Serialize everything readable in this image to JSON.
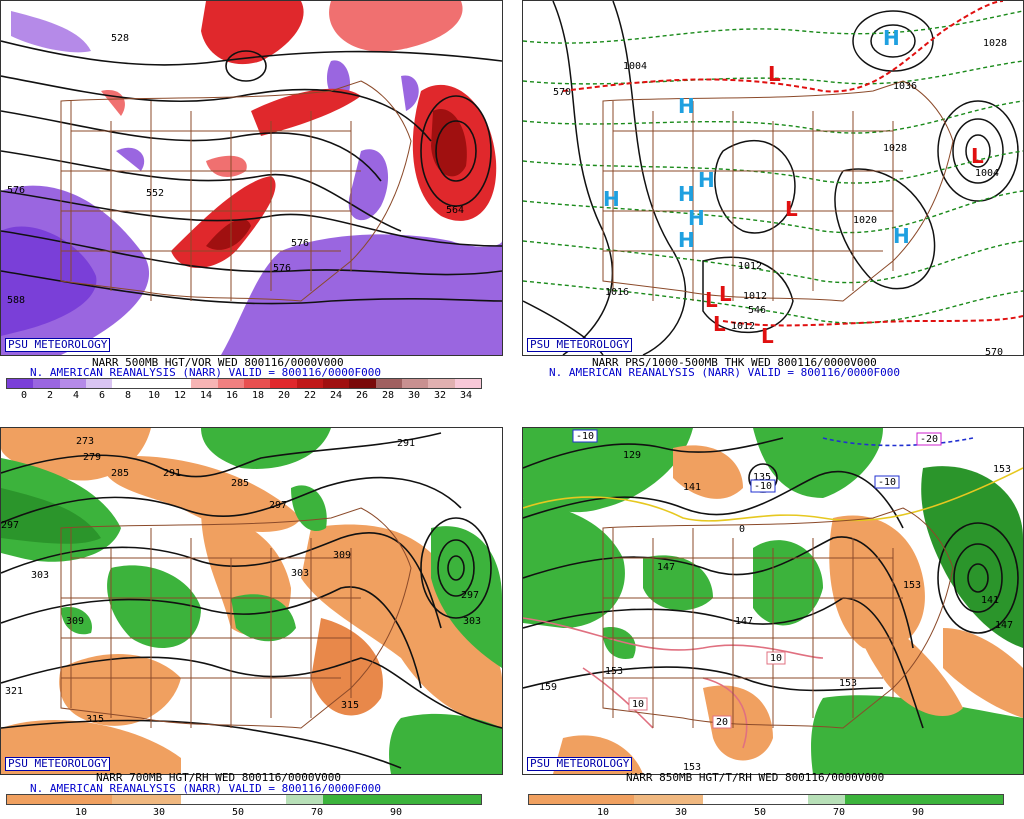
{
  "panels": [
    {
      "id": "p500",
      "badge": "PSU METEOROLOGY",
      "line1": "NARR 500MB HGT/VOR WED 800116/0000V000",
      "line2": "N. AMERICAN REANALYSIS (NARR) VALID = 800116/0000F000",
      "colorbar_ticks": [
        "0",
        "2",
        "4",
        "6",
        "8",
        "10",
        "12",
        "14",
        "16",
        "18",
        "20",
        "22",
        "24",
        "26",
        "28",
        "30",
        "32",
        "34"
      ],
      "contour_labels": [
        "528",
        "552",
        "576",
        "576",
        "588",
        "576",
        "564"
      ],
      "colors": {
        "positive": "#e0282c",
        "negative": "#8a4fd6"
      }
    },
    {
      "id": "pmslp",
      "badge": "PSU METEOROLOGY",
      "line1": "NARR PRS/1000-500MB THK WED 800116/0000V000",
      "line2": "N. AMERICAN REANALYSIS (NARR) VALID = 800116/0000F000",
      "contour_labels": [
        "1004",
        "1028",
        "1036",
        "1028",
        "1020",
        "1012",
        "1012",
        "1012",
        "1016",
        "1004",
        "570",
        "546",
        "570"
      ],
      "high_marker": "H",
      "low_marker": "L",
      "colors": {
        "high": "#1fa0e0",
        "low": "#e01010",
        "thickness": "#1a8a1a",
        "freezing": "#e01010"
      }
    },
    {
      "id": "p700",
      "badge": "PSU METEOROLOGY",
      "line1": "NARR 700MB HGT/RH WED 800116/0000V000",
      "line2": "N. AMERICAN REANALYSIS (NARR) VALID = 800116/0000F000",
      "colorbar_ticks": [
        "10",
        "30",
        "50",
        "70",
        "90"
      ],
      "contour_labels": [
        "273",
        "279",
        "285",
        "291",
        "285",
        "297",
        "297",
        "303",
        "309",
        "321",
        "315",
        "303",
        "315",
        "309",
        "297",
        "303",
        "291"
      ],
      "colors": {
        "dry": "#f0a060",
        "moist": "#3cb33c"
      }
    },
    {
      "id": "p850",
      "badge": "PSU METEOROLOGY",
      "line1": "NARR 850MB HGT/T/RH WED 800116/0000V000",
      "colorbar_ticks": [
        "10",
        "30",
        "50",
        "70",
        "90"
      ],
      "contour_labels": [
        "129",
        "141",
        "147",
        "147",
        "153",
        "159",
        "153",
        "153",
        "135",
        "141",
        "147",
        "153",
        "153"
      ],
      "temp_labels": [
        "-10",
        "-10",
        "-20",
        "-10",
        "0",
        "10",
        "10",
        "20"
      ],
      "colors": {
        "dry": "#f0a060",
        "moist": "#3cb33c"
      }
    }
  ]
}
